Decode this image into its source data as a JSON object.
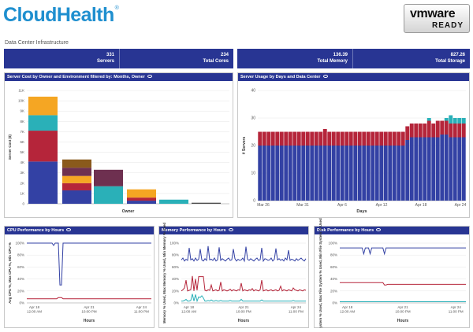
{
  "header": {
    "logo_text": "CloudHealth",
    "logo_tm": "®",
    "vmware_brand": "vmware",
    "vmware_ready": "READY",
    "subtitle": "Data Center Infrastructure"
  },
  "stats": [
    {
      "value": "331",
      "label": "Servers"
    },
    {
      "value": "234",
      "label": "Total Cores"
    },
    {
      "value": "136.39",
      "label": "Total Memory"
    },
    {
      "value": "827.26",
      "label": "Total Storage"
    }
  ],
  "panels": {
    "server_cost": {
      "title": "Server Cost by Owner and Environment filtered by: Months, Owner"
    },
    "server_usage": {
      "title": "Server Usage by Days and Data Center"
    },
    "cpu": {
      "title": "CPU Performance by Hours"
    },
    "memory": {
      "title": "Memory Performance by Hours"
    },
    "disk": {
      "title": "Disk Performance by Hours"
    }
  },
  "colors": {
    "navy": "#283593",
    "blue": "#3341a4",
    "red": "#b5253a",
    "teal": "#2ab0b8",
    "orange": "#f5a623",
    "purple": "#6e3050",
    "brown": "#8a5a1c",
    "darkgray": "#4a4a4a"
  },
  "chart_data": [
    {
      "type": "bar",
      "stacked": true,
      "title": "Server Cost by Owner and Environment filtered by: Months, Owner",
      "xlabel": "Owner",
      "ylabel": "Server Cost ($)",
      "ylim": [
        0,
        11000
      ],
      "yticks": [
        "0",
        "1K",
        "2K",
        "3K",
        "4K",
        "5K",
        "6K",
        "7K",
        "8K",
        "9K",
        "10K",
        "11K"
      ],
      "categories": [
        "",
        "",
        "",
        "",
        "",
        ""
      ],
      "series": [
        {
          "color": "#3341a4",
          "values": [
            4100,
            1300,
            0,
            300,
            0,
            0
          ]
        },
        {
          "color": "#b5253a",
          "values": [
            3000,
            700,
            0,
            300,
            0,
            0
          ]
        },
        {
          "color": "#2ab0b8",
          "values": [
            1500,
            0,
            1700,
            0,
            400,
            0
          ]
        },
        {
          "color": "#f5a623",
          "values": [
            1800,
            700,
            0,
            800,
            0,
            0
          ]
        },
        {
          "color": "#4a4a4a",
          "values": [
            0,
            0,
            0,
            0,
            0,
            100
          ]
        },
        {
          "color": "#6e3050",
          "values": [
            0,
            800,
            1600,
            0,
            0,
            0
          ]
        },
        {
          "color": "#8a5a1c",
          "values": [
            0,
            800,
            0,
            0,
            0,
            0
          ]
        }
      ]
    },
    {
      "type": "bar",
      "stacked": true,
      "title": "Server Usage by Days and Data Center",
      "xlabel": "Days",
      "ylabel": "# Servers",
      "ylim": [
        0,
        40
      ],
      "yticks": [
        "0",
        "10",
        "20",
        "30",
        "40"
      ],
      "xtick_labels": [
        "Mar 26",
        "Mar 31",
        "Apr 6",
        "Apr 12",
        "Apr 18",
        "Apr 24"
      ],
      "series": [
        {
          "name": "blue",
          "color": "#3341a4",
          "values": [
            20,
            20,
            20,
            20,
            20,
            20,
            20,
            20,
            20,
            20,
            20,
            20,
            20,
            20,
            20,
            20,
            20,
            20,
            20,
            20,
            20,
            20,
            20,
            20,
            20,
            20,
            20,
            20,
            20,
            20,
            20,
            20,
            20,
            20,
            22,
            23,
            23,
            23,
            23,
            23,
            23,
            23,
            24,
            24,
            23,
            23,
            23,
            23
          ]
        },
        {
          "name": "red",
          "color": "#b5253a",
          "values": [
            5,
            5,
            5,
            5,
            5,
            5,
            5,
            5,
            5,
            5,
            5,
            5,
            5,
            5,
            5,
            6,
            5,
            5,
            5,
            5,
            5,
            5,
            5,
            5,
            5,
            5,
            5,
            5,
            5,
            5,
            5,
            5,
            5,
            5,
            5,
            5,
            5,
            5,
            5,
            6,
            5,
            6,
            5,
            5,
            5,
            5,
            5,
            5
          ]
        },
        {
          "name": "teal",
          "color": "#2ab0b8",
          "values": [
            0,
            0,
            0,
            0,
            0,
            0,
            0,
            0,
            0,
            0,
            0,
            0,
            0,
            0,
            0,
            0,
            0,
            0,
            0,
            0,
            0,
            0,
            0,
            0,
            0,
            0,
            0,
            0,
            0,
            0,
            0,
            0,
            0,
            0,
            0,
            0,
            0,
            0,
            0,
            1,
            0,
            0,
            0,
            1,
            3,
            2,
            2,
            2
          ]
        }
      ]
    },
    {
      "type": "line",
      "title": "CPU Performance by Hours",
      "xlabel": "Hours",
      "ylabel": "Avg CPU %, Max CPU %, Min CPU %",
      "ylim": [
        0,
        100
      ],
      "yticks": [
        "0%",
        "20%",
        "40%",
        "60%",
        "80%",
        "100%"
      ],
      "xtick_labels": [
        "Apr 18\n12:00 AM",
        "Apr 21\n10:00 PM",
        "Apr 24\n11:00 PM"
      ],
      "series": [
        {
          "color": "#3341a4",
          "values": [
            100,
            100,
            100,
            100,
            100,
            100,
            100,
            100,
            100,
            100,
            100,
            100,
            100,
            100,
            100,
            100,
            100,
            96,
            100,
            100,
            100,
            30,
            30,
            100,
            100,
            100,
            100,
            100,
            100,
            100,
            100,
            100,
            100,
            100,
            100,
            100,
            100,
            100,
            100,
            100,
            100,
            100,
            100,
            100,
            100,
            100,
            100,
            100,
            100,
            100,
            100,
            100,
            100,
            100,
            100,
            100,
            100,
            100,
            100,
            100,
            100,
            100,
            100,
            100,
            100,
            100,
            100,
            100,
            100,
            100,
            100,
            100,
            100,
            100,
            100,
            100,
            100,
            100,
            100,
            100
          ]
        },
        {
          "color": "#b5253a",
          "values": [
            7,
            7,
            7,
            7,
            7,
            7,
            7,
            7,
            7,
            7,
            7,
            7,
            7,
            7,
            7,
            7,
            7,
            7,
            7,
            7,
            9,
            9,
            9,
            7,
            7,
            7,
            7,
            7,
            7,
            7,
            7,
            7,
            7,
            7,
            7,
            7,
            7,
            7,
            7,
            7,
            7,
            7,
            7,
            7,
            7,
            7,
            7,
            7,
            7,
            7,
            7,
            7,
            7,
            7,
            7,
            7,
            7,
            7,
            7,
            7,
            7,
            7,
            7,
            7,
            7,
            7,
            7,
            7,
            7,
            7,
            7,
            7,
            7,
            7,
            7,
            7,
            7,
            7,
            7,
            7
          ]
        }
      ]
    },
    {
      "type": "line",
      "title": "Memory Performance by Hours",
      "xlabel": "Hours",
      "ylabel": "Memory % Used, Max Memory % Used, Min Memory % Used",
      "ylim": [
        0,
        100
      ],
      "yticks": [
        "0%",
        "20%",
        "40%",
        "60%",
        "80%",
        "100%"
      ],
      "xtick_labels": [
        "Apr 18\n12:00 AM",
        "Apr 21\n10:00 PM",
        "Apr 24\n11:00 PM"
      ],
      "series": [
        {
          "color": "#3341a4",
          "values": [
            72,
            75,
            70,
            73,
            71,
            92,
            72,
            74,
            70,
            75,
            71,
            73,
            90,
            72,
            70,
            74,
            71,
            95,
            72,
            73,
            71,
            75,
            70,
            72,
            93,
            71,
            74,
            72,
            70,
            73,
            75,
            71,
            72,
            90,
            74,
            70,
            73,
            71,
            72,
            75,
            70,
            94,
            73,
            71,
            74,
            72,
            70,
            73,
            75,
            71,
            72,
            92,
            70,
            74,
            73,
            71,
            72,
            75,
            70,
            73,
            91,
            72,
            74,
            71,
            73,
            70,
            75,
            72,
            88,
            71,
            73,
            72,
            70,
            74,
            71,
            73,
            75,
            72,
            70,
            74
          ]
        },
        {
          "color": "#b5253a",
          "values": [
            20,
            22,
            25,
            38,
            20,
            21,
            22,
            45,
            20,
            40,
            21,
            44,
            44,
            44,
            44,
            21,
            20,
            22,
            21,
            30,
            20,
            21,
            22,
            20,
            21,
            35,
            20,
            22,
            21,
            20,
            21,
            23,
            20,
            22,
            21,
            20,
            22,
            21,
            33,
            20,
            22,
            21,
            20,
            22,
            21,
            24,
            20,
            22,
            21,
            20,
            22,
            38,
            20,
            21,
            22,
            20,
            21,
            22,
            20,
            21,
            22,
            20,
            21,
            28,
            20,
            22,
            21,
            20,
            22,
            21,
            20,
            25,
            22,
            21,
            20,
            22,
            21,
            20,
            22,
            21
          ]
        },
        {
          "color": "#2ab0b8",
          "values": [
            3,
            3,
            4,
            6,
            3,
            3,
            4,
            15,
            3,
            14,
            3,
            10,
            9,
            12,
            8,
            3,
            3,
            4,
            3,
            5,
            3,
            3,
            4,
            3,
            3,
            4,
            3,
            3,
            3,
            3,
            3,
            4,
            3,
            3,
            3,
            3,
            3,
            3,
            6,
            3,
            3,
            3,
            3,
            3,
            3,
            3,
            3,
            3,
            3,
            3,
            3,
            5,
            3,
            3,
            3,
            3,
            3,
            3,
            3,
            3,
            3,
            3,
            3,
            3,
            3,
            3,
            3,
            3,
            3,
            3,
            3,
            4,
            3,
            3,
            3,
            3,
            3,
            3,
            3,
            3
          ]
        }
      ]
    },
    {
      "type": "line",
      "title": "Disk Performance by Hours",
      "xlabel": "Hours",
      "ylabel": "ystem % Used, Max File System % Used, Min File System % Used",
      "ylim": [
        0,
        100
      ],
      "yticks": [
        "0%",
        "20%",
        "40%",
        "60%",
        "80%",
        "100%"
      ],
      "xtick_labels": [
        "Apr 18\n12:00 AM",
        "Apr 21\n10:00 PM",
        "Apr 24\n11:00 PM"
      ],
      "series": [
        {
          "color": "#3341a4",
          "values": [
            92,
            92,
            92,
            92,
            92,
            92,
            92,
            92,
            92,
            92,
            92,
            92,
            92,
            92,
            92,
            82,
            92,
            92,
            92,
            82,
            92,
            92,
            92,
            92,
            92,
            92,
            92,
            92,
            82,
            92,
            92,
            92,
            92,
            92,
            92,
            92,
            92,
            92,
            92,
            92,
            92,
            92,
            92,
            92,
            92,
            92,
            92,
            92,
            92,
            92,
            92,
            92,
            92,
            92,
            92,
            92,
            92,
            92,
            92,
            92,
            92,
            92,
            92,
            92,
            92,
            92,
            92,
            92,
            92,
            92,
            92,
            92,
            92,
            92,
            92,
            92,
            92,
            92,
            92,
            92
          ]
        },
        {
          "color": "#b5253a",
          "values": [
            34,
            34,
            34,
            34,
            34,
            34,
            34,
            34,
            34,
            34,
            34,
            34,
            34,
            34,
            34,
            34,
            34,
            34,
            34,
            34,
            34,
            34,
            34,
            34,
            34,
            34,
            34,
            34,
            30,
            30,
            31,
            31,
            31,
            31,
            31,
            31,
            31,
            31,
            31,
            31,
            31,
            31,
            31,
            31,
            31,
            31,
            31,
            31,
            31,
            31,
            31,
            31,
            31,
            31,
            31,
            31,
            31,
            31,
            31,
            31,
            31,
            31,
            31,
            31,
            31,
            31,
            31,
            31,
            31,
            31,
            31,
            31,
            31,
            31,
            31,
            31,
            31,
            31,
            31,
            31
          ]
        },
        {
          "color": "#2ab0b8",
          "values": [
            2,
            2,
            2,
            2,
            2,
            2,
            2,
            2,
            2,
            2,
            2,
            2,
            2,
            2,
            2,
            2,
            2,
            2,
            2,
            2,
            2,
            2,
            2,
            2,
            2,
            2,
            2,
            2,
            2,
            2,
            2,
            2,
            2,
            2,
            2,
            2,
            2,
            2,
            2,
            2,
            2,
            2,
            2,
            2,
            2,
            2,
            2,
            2,
            2,
            2,
            2,
            2,
            2,
            2,
            2,
            2,
            2,
            2,
            2,
            2,
            2,
            2,
            2,
            2,
            2,
            2,
            2,
            2,
            2,
            2,
            2,
            2,
            2,
            2,
            2,
            2,
            2,
            2,
            2,
            2
          ]
        }
      ]
    }
  ]
}
